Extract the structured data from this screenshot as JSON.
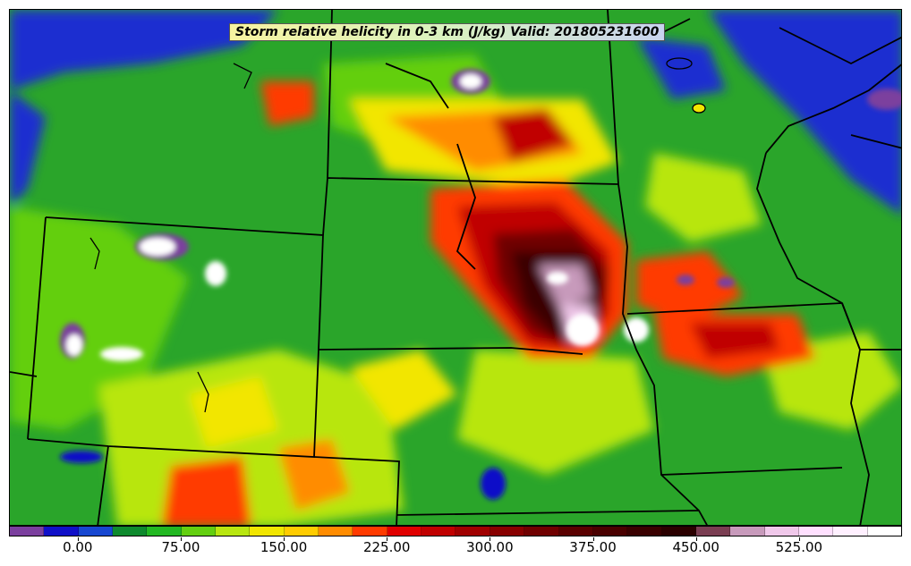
{
  "title": "Storm relative helicity in 0-3 km (J/kg) Valid: 201805231600",
  "colorbar": {
    "colors": [
      "#7b3f9e",
      "#1010c8",
      "#1747d0",
      "#0e8a2e",
      "#22b822",
      "#63cf10",
      "#b8e610",
      "#f2e600",
      "#ffcc00",
      "#ff8c00",
      "#ff3b00",
      "#e00000",
      "#c00000",
      "#a00000",
      "#880000",
      "#700000",
      "#5a0000",
      "#4a0000",
      "#3a0000",
      "#2b0000",
      "#7a3e52",
      "#c79abb",
      "#f0c8ea",
      "#ffe0ff",
      "#fff0ff",
      "#ffffff"
    ],
    "tick_labels": [
      "0.00",
      "75.00",
      "150.00",
      "225.00",
      "300.00",
      "375.00",
      "450.00",
      "525.00"
    ],
    "tick_values": [
      0,
      75,
      150,
      225,
      300,
      375,
      450,
      525
    ],
    "min": -50,
    "max": 600
  }
}
